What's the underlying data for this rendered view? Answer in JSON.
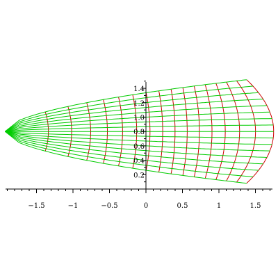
{
  "chart_data": {
    "type": "line",
    "title": "",
    "xlabel": "",
    "ylabel": "",
    "xlim": [
      -1.93,
      1.75
    ],
    "ylim": [
      0,
      1.55
    ],
    "grid": false,
    "legend": "none",
    "x_ticks": [
      {
        "value": -1.5,
        "label": "−1.5"
      },
      {
        "value": -1,
        "label": "−1"
      },
      {
        "value": -0.5,
        "label": "−0.5"
      },
      {
        "value": 0,
        "label": "0"
      },
      {
        "value": 0.5,
        "label": "0.5"
      },
      {
        "value": 1,
        "label": "1"
      },
      {
        "value": 1.5,
        "label": "1.5"
      }
    ],
    "y_ticks": [
      {
        "value": 0.2,
        "label": "0.2"
      },
      {
        "value": 0.4,
        "label": "0.4"
      },
      {
        "value": 0.6,
        "label": "0.6"
      },
      {
        "value": 0.8,
        "label": "0.8"
      },
      {
        "value": 1.0,
        "label": "1.0"
      },
      {
        "value": 1.2,
        "label": "1.2"
      },
      {
        "value": 1.4,
        "label": "1.4"
      }
    ],
    "series": [
      {
        "family": "red",
        "color": "#cc0000",
        "count": 16
      },
      {
        "family": "green",
        "color": "#00cc00",
        "count": 16
      }
    ],
    "mapping": {
      "description_visible": false,
      "source_grid_u": [
        0,
        1.57
      ],
      "source_grid_v": [
        -1.5,
        1.5
      ]
    }
  }
}
